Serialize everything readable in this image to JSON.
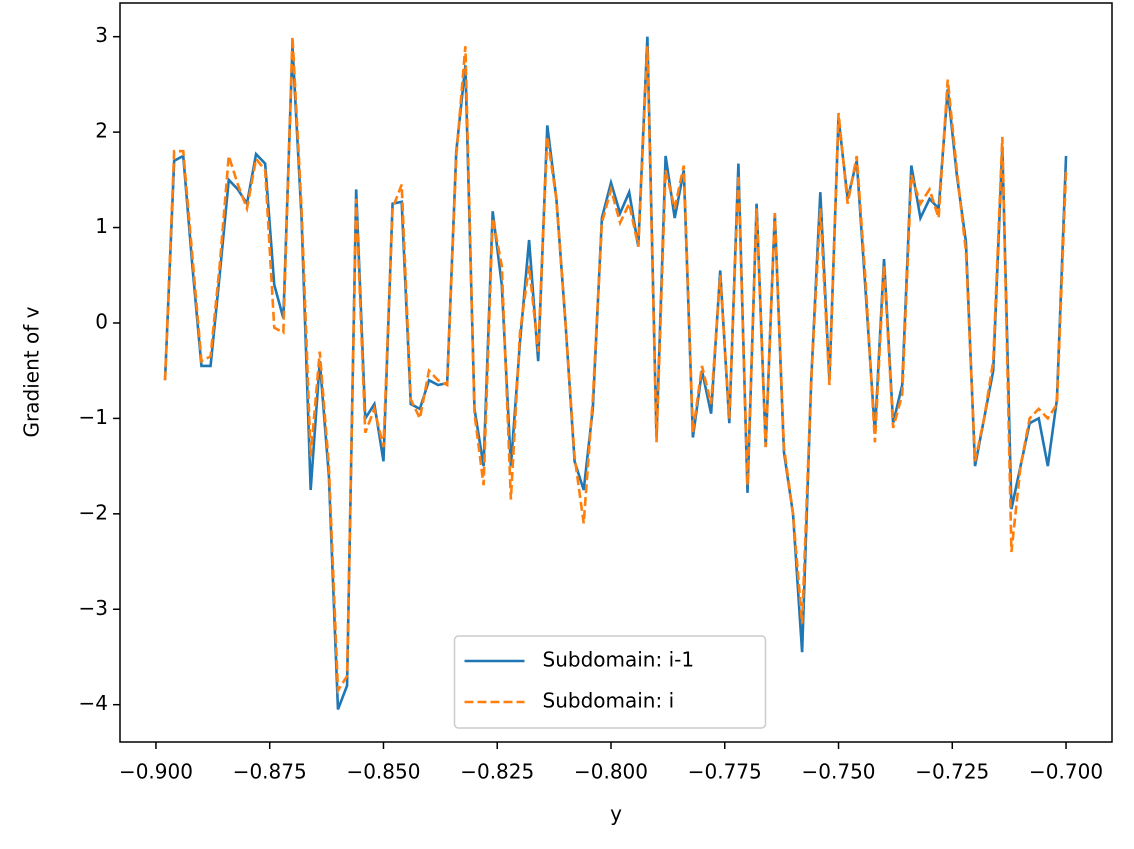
{
  "chart_data": {
    "type": "line",
    "xlabel": "y",
    "ylabel": "Gradient of v",
    "x": [
      -0.898,
      -0.896,
      -0.894,
      -0.892,
      -0.89,
      -0.888,
      -0.886,
      -0.884,
      -0.882,
      -0.88,
      -0.878,
      -0.876,
      -0.874,
      -0.872,
      -0.87,
      -0.868,
      -0.866,
      -0.864,
      -0.862,
      -0.86,
      -0.858,
      -0.856,
      -0.854,
      -0.852,
      -0.85,
      -0.848,
      -0.846,
      -0.844,
      -0.842,
      -0.84,
      -0.838,
      -0.836,
      -0.834,
      -0.832,
      -0.83,
      -0.828,
      -0.826,
      -0.824,
      -0.822,
      -0.82,
      -0.818,
      -0.816,
      -0.814,
      -0.812,
      -0.81,
      -0.808,
      -0.806,
      -0.804,
      -0.802,
      -0.8,
      -0.798,
      -0.796,
      -0.794,
      -0.792,
      -0.79,
      -0.788,
      -0.786,
      -0.784,
      -0.782,
      -0.78,
      -0.778,
      -0.776,
      -0.774,
      -0.772,
      -0.77,
      -0.768,
      -0.766,
      -0.764,
      -0.762,
      -0.76,
      -0.758,
      -0.756,
      -0.754,
      -0.752,
      -0.75,
      -0.748,
      -0.746,
      -0.744,
      -0.742,
      -0.74,
      -0.738,
      -0.736,
      -0.734,
      -0.732,
      -0.73,
      -0.728,
      -0.726,
      -0.724,
      -0.722,
      -0.72,
      -0.718,
      -0.716,
      -0.714,
      -0.712,
      -0.71,
      -0.708,
      -0.706,
      -0.704,
      -0.702,
      -0.7
    ],
    "series": [
      {
        "name": "Subdomain: i-1",
        "color": "#1f77b4",
        "dash": false,
        "values": [
          -0.6,
          1.7,
          1.75,
          0.6,
          -0.45,
          -0.45,
          0.5,
          1.5,
          1.4,
          1.25,
          1.77,
          1.67,
          0.4,
          0.05,
          2.9,
          1.1,
          -1.75,
          -0.4,
          -1.6,
          -4.05,
          -3.8,
          1.4,
          -1.0,
          -0.85,
          -1.45,
          1.25,
          1.27,
          -0.85,
          -0.9,
          -0.6,
          -0.65,
          -0.63,
          1.8,
          2.7,
          -0.9,
          -1.5,
          1.17,
          0.4,
          -1.5,
          -0.2,
          0.87,
          -0.4,
          2.07,
          1.3,
          0.0,
          -1.45,
          -1.75,
          -0.9,
          1.1,
          1.47,
          1.15,
          1.37,
          0.8,
          3.0,
          -1.2,
          1.75,
          1.1,
          1.6,
          -1.2,
          -0.5,
          -0.95,
          0.55,
          -1.05,
          1.67,
          -1.78,
          1.25,
          -1.3,
          1.15,
          -1.35,
          -2.0,
          -3.45,
          -0.6,
          1.37,
          -0.6,
          2.15,
          1.3,
          1.7,
          0.3,
          -1.15,
          0.67,
          -1.05,
          -0.65,
          1.65,
          1.1,
          1.3,
          1.2,
          2.45,
          1.55,
          0.85,
          -1.5,
          -1.0,
          -0.5,
          1.85,
          -1.95,
          -1.5,
          -1.05,
          -1.0,
          -1.5,
          -0.8,
          1.75
        ]
      },
      {
        "name": "Subdomain: i",
        "color": "#ff7f0e",
        "dash": true,
        "values": [
          -0.6,
          1.8,
          1.8,
          0.7,
          -0.4,
          -0.35,
          0.6,
          1.75,
          1.45,
          1.2,
          1.72,
          1.6,
          -0.05,
          -0.1,
          3.0,
          1.2,
          -1.4,
          -0.3,
          -1.5,
          -3.85,
          -3.7,
          1.3,
          -1.15,
          -0.9,
          -1.3,
          1.2,
          1.45,
          -0.8,
          -1.0,
          -0.5,
          -0.6,
          -0.65,
          1.75,
          2.9,
          -0.95,
          -1.7,
          1.1,
          0.6,
          -1.85,
          -0.1,
          0.6,
          -0.3,
          1.95,
          1.3,
          0.0,
          -1.4,
          -2.1,
          -0.8,
          1.05,
          1.4,
          1.05,
          1.25,
          0.8,
          2.9,
          -1.25,
          1.6,
          1.2,
          1.65,
          -1.15,
          -0.45,
          -0.85,
          0.5,
          -1.0,
          1.55,
          -1.7,
          1.2,
          -1.3,
          1.15,
          -1.3,
          -2.0,
          -3.15,
          -0.6,
          1.2,
          -0.65,
          2.2,
          1.25,
          1.75,
          0.4,
          -1.25,
          0.6,
          -1.1,
          -0.75,
          1.55,
          1.25,
          1.4,
          1.1,
          2.55,
          1.6,
          0.75,
          -1.45,
          -1.0,
          -0.4,
          1.95,
          -2.4,
          -1.5,
          -1.0,
          -0.9,
          -1.0,
          -0.85,
          1.6
        ]
      }
    ],
    "xlim": [
      -0.9079,
      -0.6899
    ],
    "ylim": [
      -4.391,
      3.353
    ],
    "xticks": [
      {
        "value": -0.9,
        "label": "−0.900"
      },
      {
        "value": -0.875,
        "label": "−0.875"
      },
      {
        "value": -0.85,
        "label": "−0.850"
      },
      {
        "value": -0.825,
        "label": "−0.825"
      },
      {
        "value": -0.8,
        "label": "−0.800"
      },
      {
        "value": -0.775,
        "label": "−0.775"
      },
      {
        "value": -0.75,
        "label": "−0.750"
      },
      {
        "value": -0.725,
        "label": "−0.725"
      },
      {
        "value": -0.7,
        "label": "−0.700"
      }
    ],
    "yticks": [
      {
        "value": -4,
        "label": "−4"
      },
      {
        "value": -3,
        "label": "−3"
      },
      {
        "value": -2,
        "label": "−2"
      },
      {
        "value": -1,
        "label": "−1"
      },
      0,
      1,
      2,
      3
    ],
    "legend": "lower center",
    "grid": false
  }
}
